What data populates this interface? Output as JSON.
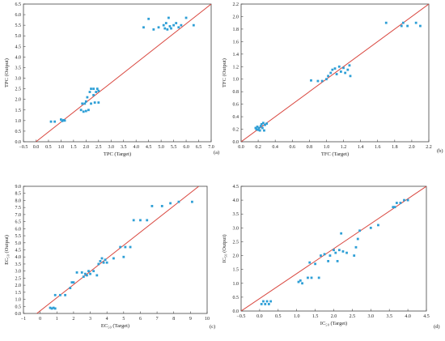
{
  "chart_data": [
    {
      "type": "scatter",
      "panel_label": "(a)",
      "xlabel": "TPC (Target)",
      "ylabel": "TPC (Output)",
      "xlim": [
        -0.5,
        7.0
      ],
      "ylim": [
        0.0,
        6.5
      ],
      "xticks": [
        -0.5,
        0.0,
        0.5,
        1.0,
        1.5,
        2.0,
        2.5,
        3.0,
        3.5,
        4.0,
        4.5,
        5.0,
        5.5,
        6.0,
        6.5,
        7.0
      ],
      "yticks": [
        0.0,
        0.5,
        1.0,
        1.5,
        2.0,
        2.5,
        3.0,
        3.5,
        4.0,
        4.5,
        5.0,
        5.5,
        6.0,
        6.5
      ],
      "xtick_labels": [
        "−0.5",
        "0.0",
        "0.5",
        "1.0",
        "1.5",
        "2.0",
        "2.5",
        "3.0",
        "3.5",
        "4.0",
        "4.5",
        "5.0",
        "5.5",
        "6.0",
        "6.5",
        "7.0"
      ],
      "ytick_labels": [
        "0.0",
        "0.5",
        "1.0",
        "1.5",
        "2.0",
        "2.5",
        "3.0",
        "3.5",
        "4.0",
        "4.5",
        "5.0",
        "5.5",
        "6.0",
        "6.5"
      ],
      "grid": false,
      "reference_line": {
        "from": [
          0.0,
          0.0
        ],
        "to": [
          7.0,
          6.5
        ]
      },
      "points": [
        [
          0.6,
          0.95
        ],
        [
          0.75,
          0.95
        ],
        [
          1.0,
          1.05
        ],
        [
          1.05,
          0.98
        ],
        [
          1.1,
          1.02
        ],
        [
          1.15,
          1.0
        ],
        [
          1.8,
          1.5
        ],
        [
          1.85,
          1.8
        ],
        [
          1.9,
          1.42
        ],
        [
          1.95,
          1.8
        ],
        [
          2.0,
          1.45
        ],
        [
          2.0,
          1.9
        ],
        [
          2.05,
          2.1
        ],
        [
          2.1,
          1.5
        ],
        [
          2.15,
          2.35
        ],
        [
          2.2,
          1.8
        ],
        [
          2.2,
          2.5
        ],
        [
          2.3,
          2.2
        ],
        [
          2.3,
          2.5
        ],
        [
          2.35,
          1.85
        ],
        [
          2.4,
          2.35
        ],
        [
          2.45,
          2.5
        ],
        [
          2.5,
          2.4
        ],
        [
          2.5,
          1.85
        ],
        [
          4.3,
          5.4
        ],
        [
          4.5,
          5.8
        ],
        [
          4.7,
          5.3
        ],
        [
          4.9,
          5.4
        ],
        [
          5.1,
          5.5
        ],
        [
          5.15,
          5.35
        ],
        [
          5.2,
          5.6
        ],
        [
          5.25,
          5.3
        ],
        [
          5.3,
          5.85
        ],
        [
          5.35,
          5.45
        ],
        [
          5.4,
          5.35
        ],
        [
          5.5,
          5.5
        ],
        [
          5.6,
          5.6
        ],
        [
          5.7,
          5.4
        ],
        [
          5.8,
          5.5
        ],
        [
          6.0,
          5.85
        ],
        [
          6.3,
          5.5
        ]
      ]
    },
    {
      "type": "scatter",
      "panel_label": "(b)",
      "xlabel": "TFC (Target)",
      "ylabel": "TFC (Output)",
      "xlim": [
        0.0,
        2.2
      ],
      "ylim": [
        0.0,
        2.2
      ],
      "xticks": [
        0.0,
        0.2,
        0.4,
        0.6,
        0.8,
        1.0,
        1.2,
        1.4,
        1.6,
        1.8,
        2.0,
        2.2
      ],
      "yticks": [
        0.0,
        0.2,
        0.4,
        0.6,
        0.8,
        1.0,
        1.2,
        1.4,
        1.6,
        1.8,
        2.0,
        2.2
      ],
      "xtick_labels": [
        "0.0",
        "0.2",
        "0.4",
        "0.6",
        "0.8",
        "1.0",
        "1.2",
        "1.4",
        "1.6",
        "1.8",
        "2.0",
        "2.2"
      ],
      "ytick_labels": [
        "0.0",
        "0.2",
        "0.4",
        "0.6",
        "0.8",
        "1.0",
        "1.2",
        "1.4",
        "1.6",
        "1.8",
        "2.0",
        "2.2"
      ],
      "grid": false,
      "reference_line": {
        "from": [
          0.0,
          0.0
        ],
        "to": [
          2.2,
          2.2
        ]
      },
      "points": [
        [
          0.17,
          0.22
        ],
        [
          0.18,
          0.2
        ],
        [
          0.19,
          0.24
        ],
        [
          0.2,
          0.19
        ],
        [
          0.21,
          0.22
        ],
        [
          0.22,
          0.18
        ],
        [
          0.23,
          0.25
        ],
        [
          0.24,
          0.28
        ],
        [
          0.25,
          0.22
        ],
        [
          0.26,
          0.3
        ],
        [
          0.27,
          0.18
        ],
        [
          0.28,
          0.27
        ],
        [
          0.3,
          0.29
        ],
        [
          0.82,
          0.98
        ],
        [
          0.9,
          0.97
        ],
        [
          0.95,
          0.97
        ],
        [
          1.0,
          1.0
        ],
        [
          1.02,
          1.05
        ],
        [
          1.05,
          1.1
        ],
        [
          1.07,
          1.15
        ],
        [
          1.1,
          1.17
        ],
        [
          1.12,
          1.08
        ],
        [
          1.15,
          1.2
        ],
        [
          1.17,
          1.12
        ],
        [
          1.2,
          1.18
        ],
        [
          1.22,
          1.1
        ],
        [
          1.25,
          1.15
        ],
        [
          1.27,
          1.22
        ],
        [
          1.28,
          1.05
        ],
        [
          1.7,
          1.9
        ],
        [
          1.88,
          1.85
        ],
        [
          1.9,
          1.9
        ],
        [
          1.95,
          1.85
        ],
        [
          2.05,
          1.9
        ],
        [
          2.1,
          1.85
        ]
      ]
    },
    {
      "type": "scatter",
      "panel_label": "(c)",
      "xlabel": "EC₅₀ (Target)",
      "ylabel": "EC₅₀ (Output)",
      "xlim": [
        -1.0,
        10.0
      ],
      "ylim": [
        0.0,
        9.0
      ],
      "xticks": [
        -1,
        0,
        1,
        2,
        3,
        4,
        5,
        6,
        7,
        8,
        9,
        10
      ],
      "yticks": [
        0.0,
        0.5,
        1.0,
        1.5,
        2.0,
        2.5,
        3.0,
        3.5,
        4.0,
        4.5,
        5.0,
        5.5,
        6.0,
        6.5,
        7.0,
        7.5,
        8.0,
        8.5,
        9.0
      ],
      "xtick_labels": [
        "−1",
        "0",
        "1",
        "2",
        "3",
        "4",
        "5",
        "6",
        "7",
        "8",
        "9",
        "10"
      ],
      "ytick_labels": [
        "0.0",
        "0.5",
        "1.0",
        "1.5",
        "2.0",
        "2.5",
        "3.0",
        "3.5",
        "4.0",
        "4.5",
        "5.0",
        "5.5",
        "6.0",
        "6.5",
        "7.0",
        "7.5",
        "8.0",
        "8.5",
        "9.0"
      ],
      "grid": false,
      "reference_line": {
        "from": [
          -0.2,
          0.0
        ],
        "to": [
          9.5,
          9.0
        ]
      },
      "points": [
        [
          0.6,
          0.4
        ],
        [
          0.7,
          0.35
        ],
        [
          0.8,
          0.4
        ],
        [
          0.9,
          0.35
        ],
        [
          0.9,
          1.3
        ],
        [
          1.2,
          1.3
        ],
        [
          1.5,
          1.3
        ],
        [
          1.8,
          1.8
        ],
        [
          1.9,
          2.2
        ],
        [
          2.0,
          2.2
        ],
        [
          2.2,
          2.9
        ],
        [
          2.5,
          2.9
        ],
        [
          2.6,
          2.6
        ],
        [
          2.7,
          2.8
        ],
        [
          2.8,
          2.7
        ],
        [
          2.9,
          3.0
        ],
        [
          3.0,
          2.8
        ],
        [
          3.2,
          3.0
        ],
        [
          3.4,
          2.7
        ],
        [
          3.5,
          3.5
        ],
        [
          3.6,
          3.7
        ],
        [
          3.7,
          3.9
        ],
        [
          3.8,
          3.6
        ],
        [
          3.9,
          3.8
        ],
        [
          4.0,
          3.6
        ],
        [
          4.4,
          3.9
        ],
        [
          4.8,
          4.7
        ],
        [
          5.0,
          4.0
        ],
        [
          5.1,
          4.7
        ],
        [
          5.4,
          4.7
        ],
        [
          5.6,
          6.6
        ],
        [
          6.0,
          6.6
        ],
        [
          6.4,
          6.6
        ],
        [
          6.7,
          7.6
        ],
        [
          7.3,
          7.6
        ],
        [
          7.8,
          7.8
        ],
        [
          8.3,
          7.9
        ],
        [
          9.1,
          7.9
        ]
      ]
    },
    {
      "type": "scatter",
      "panel_label": "(d)",
      "xlabel": "IC₅₀ (Target)",
      "ylabel": "IC₅₀ (Output)",
      "xlim": [
        -0.5,
        4.5
      ],
      "ylim": [
        0.0,
        4.5
      ],
      "xticks": [
        -0.5,
        0.0,
        0.5,
        1.0,
        1.5,
        2.0,
        2.5,
        3.0,
        3.5,
        4.0,
        4.5
      ],
      "yticks": [
        0.0,
        0.5,
        1.0,
        1.5,
        2.0,
        2.5,
        3.0,
        3.5,
        4.0,
        4.5
      ],
      "xtick_labels": [
        "−0.5",
        "0.0",
        "0.5",
        "1.0",
        "1.5",
        "2.0",
        "2.5",
        "3.0",
        "3.5",
        "4.0",
        "4.5"
      ],
      "ytick_labels": [
        "0.0",
        "0.5",
        "1.0",
        "1.5",
        "2.0",
        "2.5",
        "3.0",
        "3.5",
        "4.0",
        "4.5"
      ],
      "grid": false,
      "reference_line": {
        "from": [
          -0.5,
          0.0
        ],
        "to": [
          4.5,
          4.5
        ]
      },
      "points": [
        [
          0.05,
          0.25
        ],
        [
          0.1,
          0.35
        ],
        [
          0.15,
          0.25
        ],
        [
          0.2,
          0.35
        ],
        [
          0.25,
          0.25
        ],
        [
          0.3,
          0.35
        ],
        [
          1.05,
          1.05
        ],
        [
          1.1,
          1.1
        ],
        [
          1.15,
          1.0
        ],
        [
          1.3,
          1.2
        ],
        [
          1.35,
          1.75
        ],
        [
          1.4,
          1.2
        ],
        [
          1.5,
          1.7
        ],
        [
          1.6,
          1.2
        ],
        [
          1.65,
          2.0
        ],
        [
          1.75,
          2.05
        ],
        [
          1.85,
          1.8
        ],
        [
          1.9,
          2.0
        ],
        [
          2.0,
          2.2
        ],
        [
          2.05,
          2.1
        ],
        [
          2.1,
          1.8
        ],
        [
          2.15,
          2.2
        ],
        [
          2.2,
          2.8
        ],
        [
          2.25,
          2.15
        ],
        [
          2.35,
          2.1
        ],
        [
          2.55,
          2.0
        ],
        [
          2.6,
          2.3
        ],
        [
          2.65,
          2.6
        ],
        [
          2.7,
          2.9
        ],
        [
          3.0,
          3.0
        ],
        [
          3.2,
          3.1
        ],
        [
          3.6,
          3.75
        ],
        [
          3.65,
          3.75
        ],
        [
          3.7,
          3.9
        ],
        [
          3.8,
          3.9
        ],
        [
          3.9,
          4.0
        ],
        [
          4.0,
          4.0
        ]
      ]
    }
  ],
  "colors": {
    "points": "#2e9fd6",
    "reference_line": "#d9473f",
    "frame": "#444444",
    "text": "#222222"
  }
}
